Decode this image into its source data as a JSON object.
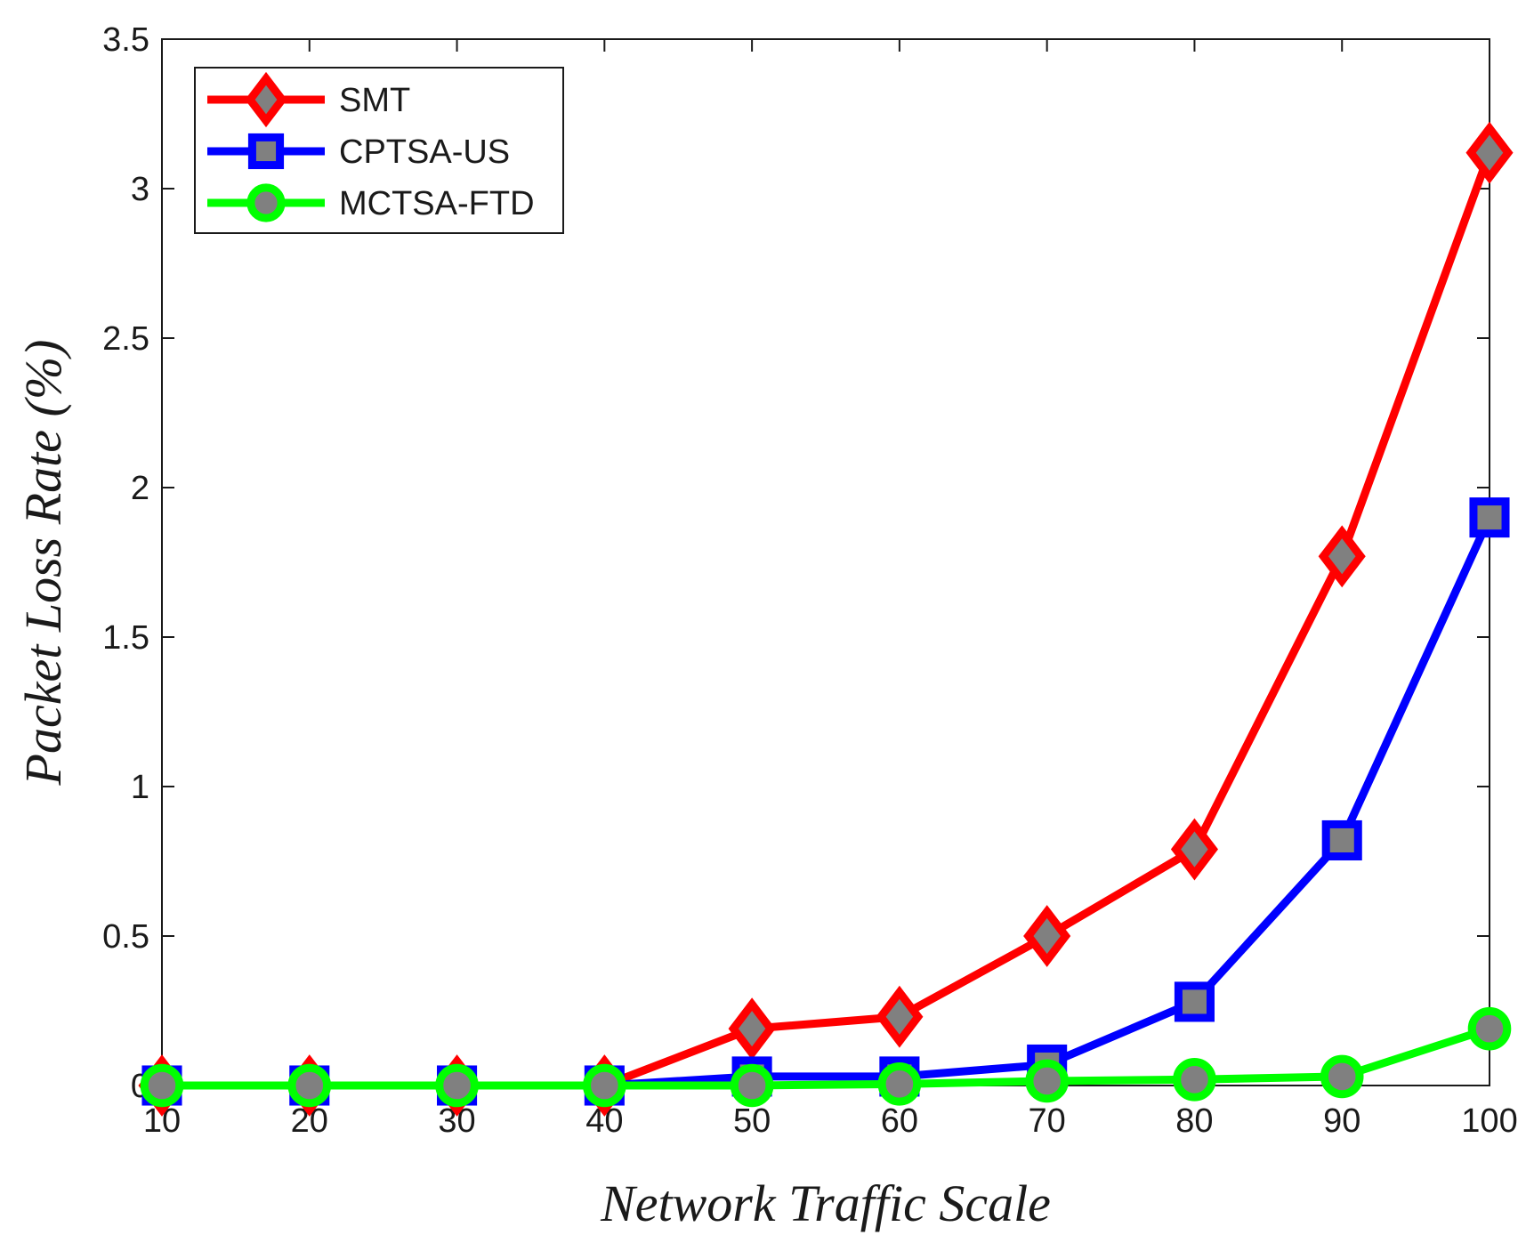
{
  "chart_data": {
    "type": "line",
    "title": "",
    "xlabel": "Network Traffic Scale",
    "ylabel": "Packet Loss Rate (%)",
    "x": [
      10,
      20,
      30,
      40,
      50,
      60,
      70,
      80,
      90,
      100
    ],
    "xticks": [
      "10",
      "20",
      "30",
      "40",
      "50",
      "60",
      "70",
      "80",
      "90",
      "100"
    ],
    "yticks": [
      "0",
      "0.5",
      "1",
      "1.5",
      "2",
      "2.5",
      "3",
      "3.5"
    ],
    "xlim": [
      10,
      100
    ],
    "ylim": [
      0,
      3.5
    ],
    "grid": false,
    "legend_position": "top-left",
    "series": [
      {
        "name": "SMT",
        "color": "#ff0000",
        "marker": "diamond",
        "values": [
          0,
          0,
          0,
          0,
          0.19,
          0.23,
          0.5,
          0.79,
          1.77,
          3.12
        ]
      },
      {
        "name": "CPTSA-US",
        "color": "#0000ff",
        "marker": "square",
        "values": [
          0,
          0,
          0,
          0,
          0.03,
          0.03,
          0.07,
          0.28,
          0.82,
          1.9
        ]
      },
      {
        "name": "MCTSA-FTD",
        "color": "#00ff00",
        "marker": "circle",
        "values": [
          0,
          0,
          0,
          0,
          0,
          0.005,
          0.015,
          0.02,
          0.03,
          0.19
        ]
      }
    ],
    "marker_fill": "#808080"
  }
}
